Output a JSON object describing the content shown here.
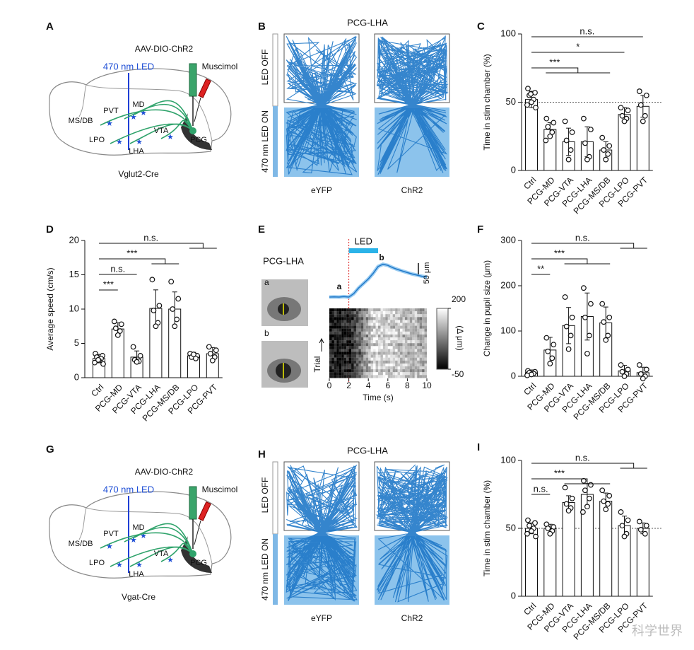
{
  "watermark": "科学世界",
  "brain_panels": [
    {
      "letter": "A",
      "virus": "AAV-DIO-ChR2",
      "light": "470 nm LED",
      "drug": "Muscimol",
      "regions": [
        "MD",
        "PVT",
        "MS/DB",
        "LPO",
        "LHA",
        "VTA",
        "PCG"
      ],
      "mouse": "Vglut2-Cre"
    },
    {
      "letter": "G",
      "virus": "AAV-DIO-ChR2",
      "light": "470 nm LED",
      "drug": "Muscimol",
      "regions": [
        "MD",
        "PVT",
        "MS/DB",
        "LPO",
        "LHA",
        "VTA",
        "PCG"
      ],
      "mouse": "Vgat-Cre"
    }
  ],
  "arena_panels": [
    {
      "letter": "B",
      "title": "PCG-LHA",
      "off": "LED OFF",
      "on": "470 nm LED ON",
      "groups": [
        "eYFP",
        "ChR2"
      ]
    },
    {
      "letter": "H",
      "title": "PCG-LHA",
      "off": "LED OFF",
      "on": "470 nm LED ON",
      "groups": [
        "eYFP",
        "ChR2"
      ]
    }
  ],
  "panel_e": {
    "letter": "E",
    "title": "PCG-LHA",
    "eyes": [
      "a",
      "b"
    ],
    "led": "LED",
    "led_on": [
      2,
      5
    ],
    "markers": [
      "a",
      "b"
    ],
    "trace": {
      "x": [
        0,
        0.5,
        1,
        1.5,
        2,
        2.5,
        3,
        3.5,
        4,
        4.5,
        5,
        5.5,
        6,
        6.5,
        7,
        7.5,
        8,
        8.5,
        9,
        9.5,
        10
      ],
      "y": [
        0,
        1,
        0,
        2,
        0,
        15,
        40,
        60,
        80,
        105,
        135,
        145,
        140,
        130,
        122,
        115,
        108,
        102,
        97,
        92,
        88
      ]
    },
    "ylim": [
      -20,
      160
    ],
    "scale_bar": {
      "value": 50,
      "label": "50 μm"
    },
    "colorbar_ticks": [
      200,
      -50
    ],
    "colorbar_label": "(Δ μm)",
    "ylabel": "Trial",
    "xlabel": "Time (s)",
    "xlim": [
      0,
      10
    ],
    "xticks": [
      0,
      2,
      4,
      6,
      8,
      10
    ]
  },
  "chart_data": [
    {
      "letter": "C",
      "type": "bar",
      "ylabel": "Time in stim chamber (%)",
      "categories": [
        "Ctrl",
        "PCG-MD",
        "PCG-VTA",
        "PCG-LHA",
        "PCG-MS/DB",
        "PCG-LPO",
        "PCG-PVT"
      ],
      "values": [
        52,
        30,
        21,
        21,
        15,
        41,
        47
      ],
      "errors": [
        6,
        5,
        10,
        11,
        6,
        5,
        8
      ],
      "points": [
        [
          60,
          57,
          55,
          52,
          50,
          48,
          46,
          56
        ],
        [
          38,
          35,
          32,
          28,
          25,
          22
        ],
        [
          36,
          28,
          22,
          15,
          8
        ],
        [
          38,
          30,
          20,
          10,
          8
        ],
        [
          24,
          18,
          15,
          12,
          8
        ],
        [
          46,
          44,
          40,
          38,
          36
        ],
        [
          58,
          55,
          48,
          40,
          36
        ]
      ],
      "ylim": [
        0,
        100
      ],
      "yticks": [
        0,
        50,
        100
      ],
      "reference": 50,
      "brackets": [
        {
          "text": "n.s.",
          "from": 0,
          "to": [
            6
          ]
        },
        {
          "text": "*",
          "from": 0,
          "to": [
            5
          ]
        },
        {
          "text": "***",
          "from": 0,
          "to": [
            1,
            4
          ]
        }
      ]
    },
    {
      "letter": "D",
      "type": "bar",
      "ylabel": "Average speed (cm/s)",
      "categories": [
        "Ctrl",
        "PCG-MD",
        "PCG-VTA",
        "PCG-LHA",
        "PCG-MS/DB",
        "PCG-LPO",
        "PCG-PVT"
      ],
      "values": [
        2.8,
        7.1,
        3.0,
        10.1,
        10.0,
        3.2,
        3.5
      ],
      "errors": [
        0.6,
        0.9,
        0.9,
        2.7,
        2.5,
        0.5,
        0.9
      ],
      "points": [
        [
          3.5,
          3.2,
          3.0,
          2.8,
          2.5,
          2.2,
          2.0,
          2.6
        ],
        [
          8.2,
          7.8,
          7.2,
          6.8,
          6.2
        ],
        [
          4.5,
          3.2,
          2.6,
          2.4,
          2.3
        ],
        [
          14.3,
          10.5,
          9.8,
          8.0,
          7.5
        ],
        [
          14.0,
          11.5,
          10.0,
          8.5,
          7.5
        ],
        [
          3.5,
          3.2,
          3.0,
          2.8,
          3.4
        ],
        [
          4.5,
          4.0,
          3.5,
          3.0,
          2.5
        ]
      ],
      "ylim": [
        0,
        20
      ],
      "yticks": [
        0,
        5,
        10,
        15,
        20
      ],
      "brackets": [
        {
          "text": "n.s.",
          "from": 0,
          "to": [
            5,
            6
          ]
        },
        {
          "text": "***",
          "from": 0,
          "to": [
            3,
            4
          ]
        },
        {
          "text": "n.s.",
          "from": 0,
          "to": [
            2
          ]
        },
        {
          "text": "***",
          "from": 0,
          "to": [
            1
          ]
        }
      ]
    },
    {
      "letter": "F",
      "type": "bar",
      "ylabel": "Change in pupil size (μm)",
      "categories": [
        "Ctrl",
        "PCG-MD",
        "PCG-VTA",
        "PCG-LHA",
        "PCG-MS/DB",
        "PCG-LPO",
        "PCG-PVT"
      ],
      "values": [
        8,
        58,
        112,
        132,
        118,
        12,
        8
      ],
      "errors": [
        6,
        28,
        40,
        52,
        35,
        12,
        12
      ],
      "points": [
        [
          12,
          10,
          8,
          6,
          4,
          2
        ],
        [
          85,
          70,
          55,
          40,
          28
        ],
        [
          175,
          130,
          110,
          90,
          60
        ],
        [
          195,
          160,
          130,
          90,
          50
        ],
        [
          160,
          130,
          120,
          90,
          80
        ],
        [
          25,
          15,
          10,
          5,
          0
        ],
        [
          25,
          15,
          5,
          0,
          -5
        ]
      ],
      "ylim": [
        0,
        300
      ],
      "yticks": [
        0,
        100,
        200,
        300
      ],
      "brackets": [
        {
          "text": "n.s.",
          "from": 0,
          "to": [
            5,
            6
          ]
        },
        {
          "text": "***",
          "from": 0,
          "to": [
            2,
            4
          ]
        },
        {
          "text": "**",
          "from": 0,
          "to": [
            1
          ]
        }
      ]
    },
    {
      "letter": "I",
      "type": "bar",
      "ylabel": "Time in stim chamber (%)",
      "categories": [
        "Ctrl",
        "PCG-MD",
        "PCG-VTA",
        "PCG-LHA",
        "PCG-MS/DB",
        "PCG-LPO",
        "PCG-PVT"
      ],
      "values": [
        50,
        50,
        69,
        75,
        70,
        52,
        50
      ],
      "errors": [
        4,
        3,
        5,
        8,
        6,
        7,
        4
      ],
      "points": [
        [
          56,
          54,
          52,
          50,
          48,
          46,
          44
        ],
        [
          53,
          51,
          50,
          48,
          46
        ],
        [
          80,
          72,
          68,
          65,
          63
        ],
        [
          85,
          82,
          78,
          72,
          66,
          62
        ],
        [
          78,
          74,
          70,
          68,
          64
        ],
        [
          62,
          56,
          52,
          46,
          44
        ],
        [
          55,
          52,
          49,
          46
        ]
      ],
      "ylim": [
        0,
        100
      ],
      "yticks": [
        0,
        50,
        100
      ],
      "reference": 50,
      "brackets": [
        {
          "text": "n.s.",
          "from": 0,
          "to": [
            5,
            6
          ]
        },
        {
          "text": "***",
          "from": 0,
          "to": [
            2,
            4
          ]
        },
        {
          "text": "n.s.",
          "from": 0,
          "to": [
            1
          ]
        }
      ]
    }
  ]
}
